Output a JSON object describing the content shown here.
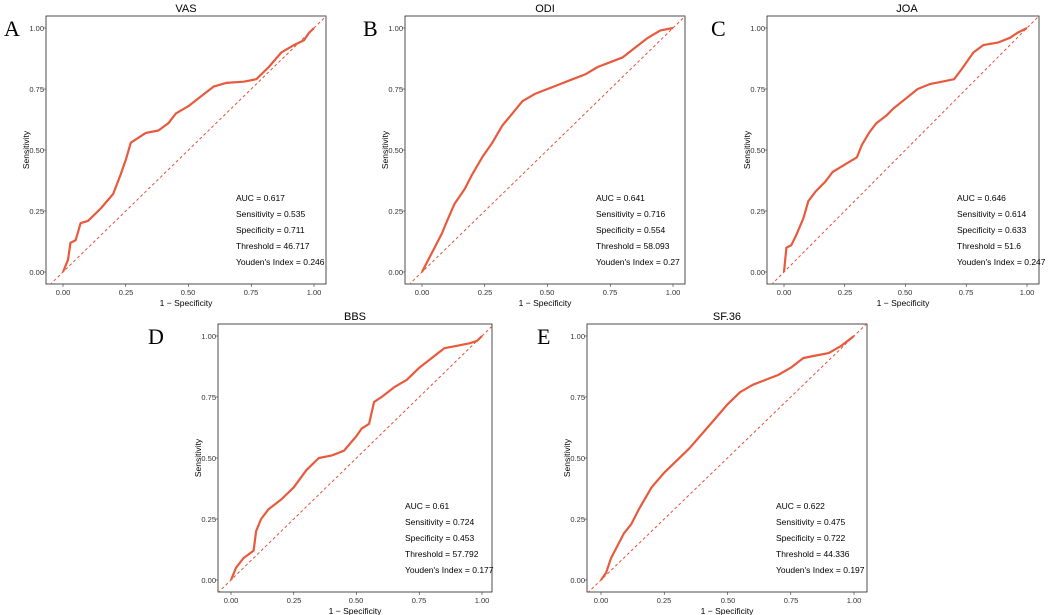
{
  "chart_data": [
    {
      "type": "line",
      "panel_label": "A",
      "title": "VAS",
      "xlabel": "1 − Specificity",
      "ylabel": "Sensitivity",
      "xlim": [
        0,
        1
      ],
      "ylim": [
        0,
        1
      ],
      "xticks": [
        "0.00",
        "0.25",
        "0.50",
        "0.75",
        "1.00"
      ],
      "yticks": [
        "0.00",
        "0.25",
        "0.50",
        "0.75",
        "1.00"
      ],
      "reference_line": "diagonal",
      "roc": [
        [
          0,
          0
        ],
        [
          0.02,
          0.05
        ],
        [
          0.03,
          0.12
        ],
        [
          0.05,
          0.13
        ],
        [
          0.07,
          0.2
        ],
        [
          0.1,
          0.21
        ],
        [
          0.15,
          0.26
        ],
        [
          0.2,
          0.32
        ],
        [
          0.23,
          0.4
        ],
        [
          0.25,
          0.46
        ],
        [
          0.27,
          0.53
        ],
        [
          0.3,
          0.55
        ],
        [
          0.33,
          0.57
        ],
        [
          0.38,
          0.58
        ],
        [
          0.42,
          0.61
        ],
        [
          0.45,
          0.65
        ],
        [
          0.5,
          0.68
        ],
        [
          0.55,
          0.72
        ],
        [
          0.6,
          0.76
        ],
        [
          0.65,
          0.775
        ],
        [
          0.72,
          0.78
        ],
        [
          0.77,
          0.79
        ],
        [
          0.82,
          0.84
        ],
        [
          0.87,
          0.9
        ],
        [
          0.92,
          0.93
        ],
        [
          0.96,
          0.95
        ],
        [
          0.98,
          0.98
        ],
        [
          1,
          1
        ]
      ],
      "metrics": [
        "AUC = 0.617",
        "Sensitivity = 0.535",
        "Specificity = 0.711",
        "Threshold = 46.717",
        "Youden's Index = 0.246"
      ]
    },
    {
      "type": "line",
      "panel_label": "B",
      "title": "ODI",
      "xlabel": "1 − Specificity",
      "ylabel": "Sensitivity",
      "xlim": [
        0,
        1
      ],
      "ylim": [
        0,
        1
      ],
      "xticks": [
        "0.00",
        "0.25",
        "0.50",
        "0.75",
        "1.00"
      ],
      "yticks": [
        "0.00",
        "0.25",
        "0.50",
        "0.75",
        "1.00"
      ],
      "reference_line": "diagonal",
      "roc": [
        [
          0,
          0
        ],
        [
          0.02,
          0.04
        ],
        [
          0.05,
          0.1
        ],
        [
          0.08,
          0.16
        ],
        [
          0.1,
          0.21
        ],
        [
          0.13,
          0.28
        ],
        [
          0.17,
          0.34
        ],
        [
          0.2,
          0.4
        ],
        [
          0.24,
          0.47
        ],
        [
          0.28,
          0.53
        ],
        [
          0.32,
          0.6
        ],
        [
          0.36,
          0.65
        ],
        [
          0.4,
          0.7
        ],
        [
          0.45,
          0.73
        ],
        [
          0.5,
          0.75
        ],
        [
          0.55,
          0.77
        ],
        [
          0.6,
          0.79
        ],
        [
          0.65,
          0.81
        ],
        [
          0.7,
          0.84
        ],
        [
          0.75,
          0.86
        ],
        [
          0.8,
          0.88
        ],
        [
          0.85,
          0.92
        ],
        [
          0.9,
          0.96
        ],
        [
          0.95,
          0.99
        ],
        [
          1,
          1
        ]
      ],
      "metrics": [
        "AUC = 0.641",
        "Sensitivity = 0.716",
        "Specificity = 0.554",
        "Threshold = 58.093",
        "Youden's Index = 0.27"
      ]
    },
    {
      "type": "line",
      "panel_label": "C",
      "title": "JOA",
      "xlabel": "1 − Specificity",
      "ylabel": "Sensitivity",
      "xlim": [
        0,
        1
      ],
      "ylim": [
        0,
        1
      ],
      "xticks": [
        "0.00",
        "0.25",
        "0.50",
        "0.75",
        "1.00"
      ],
      "yticks": [
        "0.00",
        "0.25",
        "0.50",
        "0.75",
        "1.00"
      ],
      "reference_line": "diagonal",
      "roc": [
        [
          0,
          0
        ],
        [
          0.01,
          0.1
        ],
        [
          0.03,
          0.11
        ],
        [
          0.05,
          0.15
        ],
        [
          0.08,
          0.22
        ],
        [
          0.1,
          0.29
        ],
        [
          0.13,
          0.33
        ],
        [
          0.17,
          0.37
        ],
        [
          0.2,
          0.41
        ],
        [
          0.25,
          0.44
        ],
        [
          0.3,
          0.47
        ],
        [
          0.32,
          0.52
        ],
        [
          0.35,
          0.57
        ],
        [
          0.38,
          0.61
        ],
        [
          0.42,
          0.64
        ],
        [
          0.45,
          0.67
        ],
        [
          0.5,
          0.71
        ],
        [
          0.55,
          0.75
        ],
        [
          0.6,
          0.77
        ],
        [
          0.65,
          0.78
        ],
        [
          0.7,
          0.79
        ],
        [
          0.73,
          0.83
        ],
        [
          0.78,
          0.9
        ],
        [
          0.82,
          0.93
        ],
        [
          0.88,
          0.94
        ],
        [
          0.93,
          0.96
        ],
        [
          0.96,
          0.98
        ],
        [
          1,
          1
        ]
      ],
      "metrics": [
        "AUC = 0.646",
        "Sensitivity = 0.614",
        "Specificity = 0.633",
        "Threshold = 51.6",
        "Youden's Index = 0.247"
      ]
    },
    {
      "type": "line",
      "panel_label": "D",
      "title": "BBS",
      "xlabel": "1 − Specificity",
      "ylabel": "Sensitivity",
      "xlim": [
        0,
        1
      ],
      "ylim": [
        0,
        1
      ],
      "xticks": [
        "0.00",
        "0.25",
        "0.50",
        "0.75",
        "1.00"
      ],
      "yticks": [
        "0.00",
        "0.25",
        "0.50",
        "0.75",
        "1.00"
      ],
      "reference_line": "diagonal",
      "roc": [
        [
          0,
          0
        ],
        [
          0.02,
          0.05
        ],
        [
          0.05,
          0.09
        ],
        [
          0.09,
          0.12
        ],
        [
          0.1,
          0.2
        ],
        [
          0.12,
          0.25
        ],
        [
          0.15,
          0.29
        ],
        [
          0.2,
          0.33
        ],
        [
          0.25,
          0.38
        ],
        [
          0.3,
          0.45
        ],
        [
          0.35,
          0.5
        ],
        [
          0.4,
          0.51
        ],
        [
          0.45,
          0.53
        ],
        [
          0.5,
          0.59
        ],
        [
          0.52,
          0.62
        ],
        [
          0.55,
          0.64
        ],
        [
          0.57,
          0.73
        ],
        [
          0.6,
          0.75
        ],
        [
          0.65,
          0.79
        ],
        [
          0.7,
          0.82
        ],
        [
          0.75,
          0.87
        ],
        [
          0.8,
          0.91
        ],
        [
          0.85,
          0.95
        ],
        [
          0.9,
          0.96
        ],
        [
          0.95,
          0.97
        ],
        [
          0.98,
          0.98
        ],
        [
          1,
          1
        ]
      ],
      "metrics": [
        "AUC = 0.61",
        "Sensitivity = 0.724",
        "Specificity = 0.453",
        "Threshold = 57.792",
        "Youden's Index = 0.177"
      ]
    },
    {
      "type": "line",
      "panel_label": "E",
      "title": "SF.36",
      "xlabel": "1 − Specificity",
      "ylabel": "Sensitivity",
      "xlim": [
        0,
        1
      ],
      "ylim": [
        0,
        1
      ],
      "xticks": [
        "0.00",
        "0.25",
        "0.50",
        "0.75",
        "1.00"
      ],
      "yticks": [
        "0.00",
        "0.25",
        "0.50",
        "0.75",
        "1.00"
      ],
      "reference_line": "diagonal",
      "roc": [
        [
          0,
          0
        ],
        [
          0.02,
          0.03
        ],
        [
          0.04,
          0.09
        ],
        [
          0.06,
          0.13
        ],
        [
          0.09,
          0.19
        ],
        [
          0.12,
          0.23
        ],
        [
          0.15,
          0.29
        ],
        [
          0.2,
          0.38
        ],
        [
          0.25,
          0.44
        ],
        [
          0.3,
          0.49
        ],
        [
          0.35,
          0.54
        ],
        [
          0.4,
          0.6
        ],
        [
          0.45,
          0.66
        ],
        [
          0.5,
          0.72
        ],
        [
          0.55,
          0.77
        ],
        [
          0.6,
          0.8
        ],
        [
          0.65,
          0.82
        ],
        [
          0.7,
          0.84
        ],
        [
          0.75,
          0.87
        ],
        [
          0.8,
          0.91
        ],
        [
          0.85,
          0.92
        ],
        [
          0.9,
          0.93
        ],
        [
          0.95,
          0.96
        ],
        [
          1,
          1
        ]
      ],
      "metrics": [
        "AUC = 0.622",
        "Sensitivity = 0.475",
        "Specificity = 0.722",
        "Threshold = 44.336",
        "Youden's Index = 0.197"
      ]
    }
  ]
}
